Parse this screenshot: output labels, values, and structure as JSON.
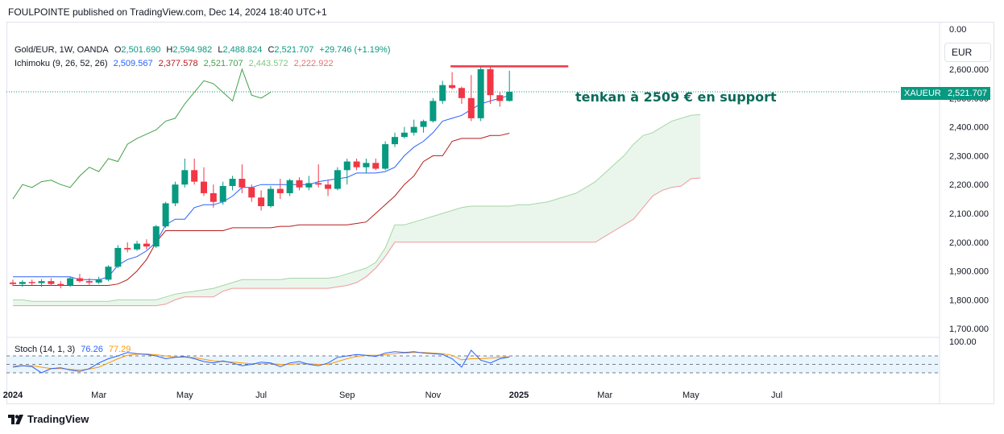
{
  "header": {
    "publisher_line": "FOULPOINTE published on TradingView.com, Dec 14, 2024 18:40 UTC+1"
  },
  "legend": {
    "symbol": "Gold/EUR, 1W, OANDA",
    "open_label": "O",
    "open": "2,501.690",
    "high_label": "H",
    "high": "2,594.982",
    "low_label": "L",
    "low": "2,488.824",
    "close_label": "C",
    "close": "2,521.707",
    "change": "+29.746 (+1.19%)",
    "ichimoku_label": "Ichimoku (9, 26, 52, 26)",
    "ichimoku_values": [
      "2,509.567",
      "2,377.578",
      "2,521.707",
      "2,443.572",
      "2,222.922"
    ],
    "stoch_label": "Stoch (14, 1, 3)",
    "stoch_k": "76.26",
    "stoch_d": "77.29"
  },
  "currency": "EUR",
  "price_tag": {
    "symbol": "XAUEUR",
    "value": "2,521.707"
  },
  "annotation": "tenkan à 2509 € en support",
  "footer": {
    "brand": "TradingView",
    "logo_icon": "tradingview-logo-icon"
  },
  "colors": {
    "up": "#089981",
    "down": "#f23645",
    "tenkan": "#2962ff",
    "kijun": "#b71c1c",
    "chikou": "#43a047",
    "span_a": "#a5d6a7",
    "span_b": "#ef9a9a",
    "cloud": "#e8f5e9",
    "stoch_k": "#2962ff",
    "stoch_d": "#ff9800",
    "resistance": "#f23645"
  },
  "chart_data": [
    {
      "type": "candlestick",
      "title": "Gold/EUR, 1W, OANDA",
      "ylim": [
        1650,
        2650
      ],
      "y_ticks": [
        "0.00",
        "2,600.000",
        "2,500.000",
        "2,400.000",
        "2,300.000",
        "2,200.000",
        "2,100.000",
        "2,000.000",
        "1,900.000",
        "1,800.000",
        "1,700.000"
      ],
      "x_ticks": [
        "2024",
        "Mar",
        "May",
        "Jul",
        "Sep",
        "Nov",
        "2025",
        "Mar",
        "May",
        "Jul"
      ],
      "x_tick_weeks": [
        0,
        9,
        18,
        26,
        35,
        44,
        53,
        62,
        71,
        80
      ],
      "candles_ohlc": [
        [
          1860,
          1870,
          1848,
          1855
        ],
        [
          1855,
          1868,
          1845,
          1862
        ],
        [
          1862,
          1870,
          1850,
          1858
        ],
        [
          1858,
          1872,
          1845,
          1865
        ],
        [
          1865,
          1875,
          1850,
          1855
        ],
        [
          1855,
          1865,
          1840,
          1850
        ],
        [
          1850,
          1880,
          1845,
          1875
        ],
        [
          1875,
          1890,
          1860,
          1865
        ],
        [
          1865,
          1875,
          1850,
          1860
        ],
        [
          1860,
          1880,
          1855,
          1870
        ],
        [
          1870,
          1920,
          1865,
          1915
        ],
        [
          1915,
          1990,
          1910,
          1980
        ],
        [
          1980,
          2000,
          1965,
          1975
        ],
        [
          1975,
          2005,
          1970,
          1995
        ],
        [
          1995,
          2010,
          1975,
          1985
        ],
        [
          1985,
          2060,
          1980,
          2055
        ],
        [
          2055,
          2140,
          2050,
          2135
        ],
        [
          2135,
          2210,
          2125,
          2200
        ],
        [
          2200,
          2290,
          2190,
          2250
        ],
        [
          2250,
          2290,
          2200,
          2210
        ],
        [
          2210,
          2260,
          2160,
          2170
        ],
        [
          2170,
          2200,
          2120,
          2140
        ],
        [
          2140,
          2210,
          2130,
          2195
        ],
        [
          2195,
          2230,
          2180,
          2220
        ],
        [
          2220,
          2270,
          2170,
          2190
        ],
        [
          2190,
          2200,
          2140,
          2155
        ],
        [
          2155,
          2180,
          2110,
          2125
        ],
        [
          2125,
          2195,
          2120,
          2185
        ],
        [
          2185,
          2220,
          2150,
          2170
        ],
        [
          2170,
          2220,
          2160,
          2215
        ],
        [
          2215,
          2225,
          2180,
          2190
        ],
        [
          2190,
          2230,
          2180,
          2205
        ],
        [
          2205,
          2270,
          2190,
          2200
        ],
        [
          2200,
          2215,
          2160,
          2185
        ],
        [
          2185,
          2260,
          2180,
          2250
        ],
        [
          2250,
          2290,
          2200,
          2280
        ],
        [
          2280,
          2290,
          2250,
          2260
        ],
        [
          2260,
          2290,
          2240,
          2275
        ],
        [
          2275,
          2290,
          2250,
          2255
        ],
        [
          2255,
          2350,
          2250,
          2340
        ],
        [
          2340,
          2380,
          2330,
          2365
        ],
        [
          2365,
          2400,
          2360,
          2380
        ],
        [
          2380,
          2425,
          2370,
          2400
        ],
        [
          2400,
          2425,
          2380,
          2420
        ],
        [
          2420,
          2500,
          2415,
          2490
        ],
        [
          2490,
          2560,
          2480,
          2545
        ],
        [
          2545,
          2590,
          2530,
          2535
        ],
        [
          2535,
          2540,
          2480,
          2500
        ],
        [
          2500,
          2580,
          2420,
          2430
        ],
        [
          2430,
          2610,
          2420,
          2600
        ],
        [
          2600,
          2610,
          2480,
          2510
        ],
        [
          2510,
          2520,
          2470,
          2490
        ],
        [
          2490,
          2595,
          2488,
          2522
        ]
      ],
      "ichimoku": {
        "tenkan": [
          1880,
          1880,
          1880,
          1880,
          1880,
          1880,
          1880,
          1870,
          1870,
          1870,
          1880,
          1920,
          1940,
          1950,
          1970,
          2000,
          2060,
          2080,
          2080,
          2120,
          2130,
          2130,
          2140,
          2160,
          2190,
          2190,
          2200,
          2200,
          2200,
          2200,
          2200,
          2200,
          2210,
          2215,
          2220,
          2225,
          2240,
          2240,
          2240,
          2245,
          2260,
          2300,
          2330,
          2350,
          2380,
          2420,
          2430,
          2440,
          2460,
          2480,
          2490,
          2500,
          2509
        ],
        "kijun": [
          1850,
          1850,
          1850,
          1850,
          1850,
          1850,
          1850,
          1850,
          1850,
          1850,
          1850,
          1855,
          1870,
          1900,
          1940,
          2000,
          2040,
          2040,
          2040,
          2040,
          2040,
          2040,
          2040,
          2050,
          2050,
          2050,
          2050,
          2050,
          2055,
          2055,
          2060,
          2060,
          2060,
          2060,
          2060,
          2060,
          2065,
          2070,
          2100,
          2130,
          2160,
          2200,
          2230,
          2280,
          2300,
          2300,
          2350,
          2360,
          2360,
          2360,
          2370,
          2370,
          2378
        ],
        "chikou": [
          2150,
          2200,
          2190,
          2210,
          2215,
          2200,
          2190,
          2230,
          2260,
          2245,
          2290,
          2280,
          2340,
          2360,
          2375,
          2390,
          2420,
          2430,
          2480,
          2520,
          2560,
          2550,
          2520,
          2490,
          2600,
          2510,
          2500,
          2520
        ],
        "span_a": [
          1800,
          1800,
          1795,
          1795,
          1795,
          1795,
          1795,
          1795,
          1795,
          1795,
          1795,
          1800,
          1800,
          1800,
          1800,
          1800,
          1810,
          1820,
          1825,
          1830,
          1835,
          1840,
          1850,
          1860,
          1870,
          1870,
          1870,
          1870,
          1870,
          1875,
          1875,
          1875,
          1875,
          1875,
          1880,
          1890,
          1900,
          1910,
          1930,
          1980,
          2060,
          2060,
          2070,
          2080,
          2090,
          2100,
          2110,
          2120,
          2125,
          2125,
          2125,
          2125,
          2125,
          2130,
          2130,
          2135,
          2140,
          2150,
          2160,
          2170,
          2190,
          2210,
          2240,
          2270,
          2300,
          2340,
          2370,
          2380,
          2400,
          2420,
          2430,
          2440,
          2443
        ],
        "span_b": [
          1780,
          1780,
          1780,
          1780,
          1780,
          1780,
          1780,
          1780,
          1780,
          1780,
          1780,
          1780,
          1780,
          1780,
          1780,
          1780,
          1785,
          1800,
          1810,
          1810,
          1810,
          1810,
          1830,
          1840,
          1840,
          1840,
          1840,
          1840,
          1840,
          1840,
          1840,
          1840,
          1840,
          1840,
          1845,
          1850,
          1860,
          1880,
          1910,
          1950,
          2000,
          2000,
          2000,
          2000,
          2000,
          2000,
          2000,
          2000,
          2000,
          2000,
          2000,
          2000,
          2000,
          2000,
          2000,
          2000,
          2000,
          2000,
          2000,
          2000,
          2000,
          2000,
          2020,
          2040,
          2060,
          2080,
          2120,
          2160,
          2180,
          2190,
          2195,
          2220,
          2223
        ]
      },
      "resistance_level": 2610,
      "current_price": 2521.707
    },
    {
      "type": "line",
      "title": "Stoch (14, 1, 3)",
      "ylim": [
        0,
        100
      ],
      "y_ticks": [
        "100.00"
      ],
      "bands": [
        80,
        20
      ],
      "series": [
        {
          "name": "%K",
          "values": [
            40,
            45,
            42,
            20,
            35,
            38,
            30,
            25,
            35,
            55,
            70,
            80,
            92,
            88,
            85,
            80,
            70,
            75,
            78,
            70,
            60,
            55,
            62,
            55,
            45,
            50,
            58,
            55,
            42,
            55,
            60,
            50,
            45,
            55,
            75,
            80,
            85,
            82,
            78,
            90,
            95,
            92,
            95,
            90,
            88,
            85,
            70,
            40,
            100,
            65,
            55,
            70,
            76
          ]
        },
        {
          "name": "%D",
          "values": [
            45,
            45,
            45,
            40,
            35,
            35,
            32,
            30,
            33,
            40,
            55,
            70,
            82,
            86,
            87,
            84,
            80,
            76,
            75,
            74,
            68,
            62,
            60,
            58,
            55,
            52,
            52,
            52,
            50,
            50,
            52,
            52,
            50,
            50,
            60,
            70,
            78,
            82,
            82,
            84,
            88,
            90,
            92,
            92,
            90,
            88,
            82,
            66,
            70,
            70,
            72,
            75,
            77
          ]
        }
      ]
    }
  ]
}
